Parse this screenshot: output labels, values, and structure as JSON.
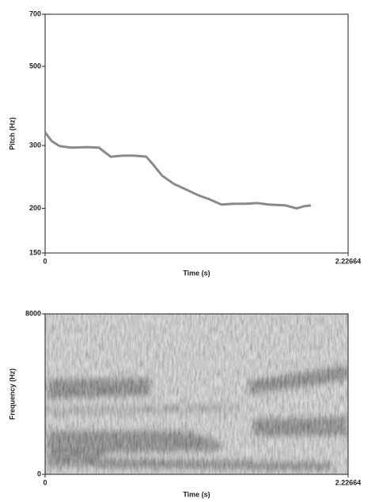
{
  "chart_data": [
    {
      "type": "line",
      "x": [
        0,
        0.047,
        0.105,
        0.192,
        0.308,
        0.395,
        0.483,
        0.57,
        0.657,
        0.744,
        0.802,
        0.86,
        0.948,
        1.035,
        1.122,
        1.209,
        1.296,
        1.384,
        1.471,
        1.558,
        1.645,
        1.762,
        1.849,
        1.907,
        1.953
      ],
      "values": [
        327,
        309,
        299,
        296,
        297,
        296,
        279,
        281,
        281,
        279,
        263,
        247,
        234,
        226,
        218,
        212,
        205,
        206,
        206,
        207,
        205,
        204,
        200,
        203,
        204
      ],
      "color": "#8a8a8a",
      "xlim": [
        0,
        2.22664
      ],
      "xticks": [
        0,
        2.22664
      ],
      "ylim": [
        150,
        700
      ],
      "yticks": [
        150,
        200,
        300,
        500,
        700
      ],
      "y_scale": "log",
      "xlabel": "Time (s)",
      "ylabel": "Pitch (Hz)"
    },
    {
      "type": "spectrogram",
      "xlim": [
        0,
        2.22664
      ],
      "xticks": [
        0,
        2.22664
      ],
      "ylim": [
        0,
        8000
      ],
      "yticks": [
        0,
        8000
      ],
      "xlabel": "Time (s)",
      "ylabel": "Frequency (Hz)"
    }
  ]
}
